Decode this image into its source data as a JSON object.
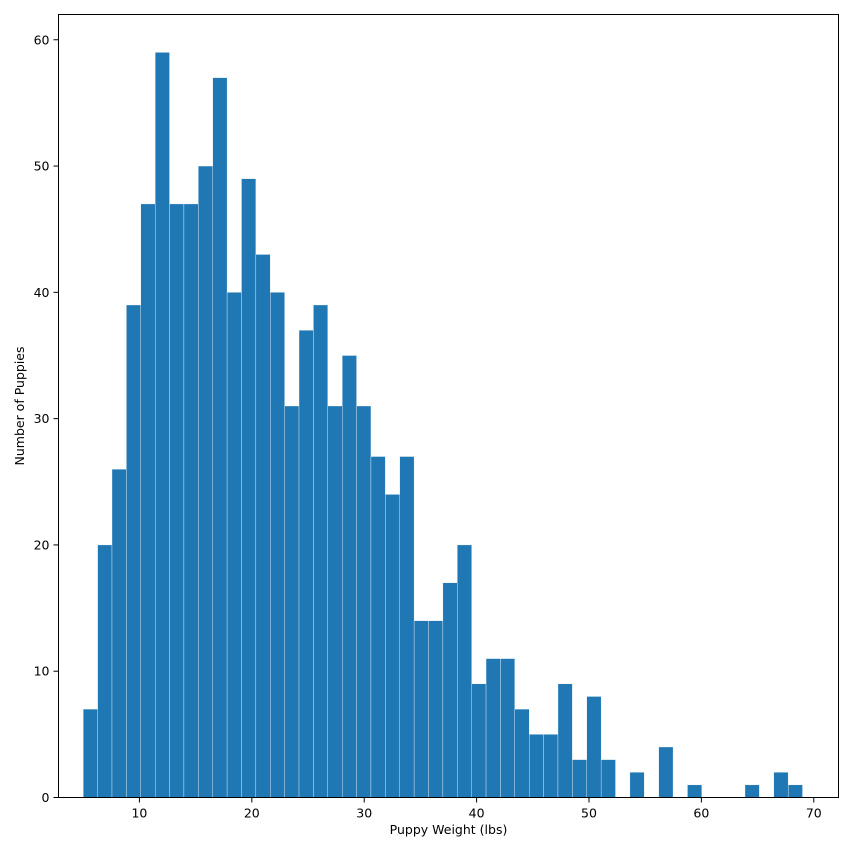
{
  "chart_data": {
    "type": "bar",
    "subtype": "histogram",
    "title": "",
    "xlabel": "Puppy Weight (lbs)",
    "ylabel": "Number of Puppies",
    "bin_start": 5.0,
    "bin_width": 1.28,
    "counts": [
      7,
      20,
      26,
      39,
      47,
      59,
      47,
      47,
      50,
      57,
      40,
      49,
      43,
      40,
      31,
      37,
      39,
      31,
      35,
      31,
      27,
      24,
      27,
      14,
      14,
      17,
      20,
      9,
      11,
      11,
      7,
      5,
      5,
      9,
      3,
      8,
      3,
      0,
      2,
      0,
      4,
      0,
      1,
      0,
      0,
      0,
      1,
      0,
      2,
      1
    ],
    "xlim": [
      2.8,
      72.2
    ],
    "ylim": [
      0,
      62
    ],
    "x_ticks": [
      10,
      20,
      30,
      40,
      50,
      60,
      70
    ],
    "y_ticks": [
      0,
      10,
      20,
      30,
      40,
      50,
      60
    ],
    "bar_color": "#1f77b4",
    "grid": false,
    "legend": "none"
  }
}
